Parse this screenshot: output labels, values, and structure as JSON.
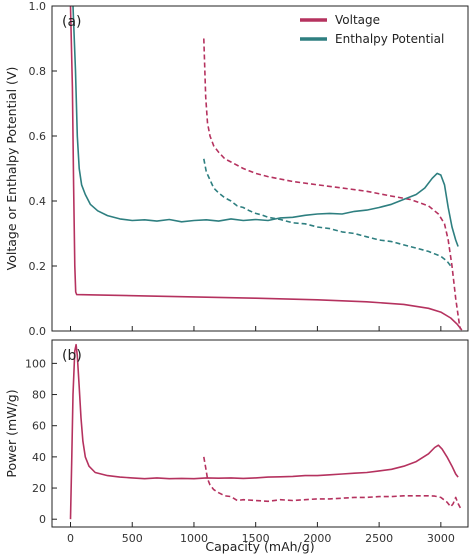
{
  "chart_data": [
    {
      "panel": "(a)",
      "type": "line",
      "xlabel": "",
      "ylabel": "Voltage or Enthalpy Potential (V)",
      "xlim": [
        -150,
        3220
      ],
      "ylim": [
        0.0,
        1.0
      ],
      "xticks": [
        0,
        500,
        1000,
        1500,
        2000,
        2500,
        3000
      ],
      "yticks": [
        0.0,
        0.2,
        0.4,
        0.6,
        0.8,
        1.0
      ],
      "ytick_labels": [
        "0.0",
        "0.2",
        "0.4",
        "0.6",
        "0.8",
        "1.0"
      ],
      "legend_position": "top-right",
      "legend": [
        "Voltage",
        "Enthalpy Potential"
      ],
      "series": [
        {
          "name": "Voltage",
          "color": "#b5325f",
          "style": "solid",
          "points": [
            [
              0,
              1.0
            ],
            [
              15,
              0.75
            ],
            [
              25,
              0.45
            ],
            [
              35,
              0.2
            ],
            [
              42,
              0.12
            ],
            [
              50,
              0.112
            ],
            [
              200,
              0.111
            ],
            [
              600,
              0.108
            ],
            [
              1000,
              0.105
            ],
            [
              1500,
              0.101
            ],
            [
              2000,
              0.096
            ],
            [
              2400,
              0.09
            ],
            [
              2700,
              0.082
            ],
            [
              2900,
              0.07
            ],
            [
              3000,
              0.058
            ],
            [
              3080,
              0.04
            ],
            [
              3130,
              0.022
            ],
            [
              3170,
              0.003
            ]
          ]
        },
        {
          "name": "Voltage",
          "color": "#b5325f",
          "style": "dashed",
          "points": [
            [
              1080,
              0.9
            ],
            [
              1095,
              0.72
            ],
            [
              1110,
              0.64
            ],
            [
              1130,
              0.6
            ],
            [
              1160,
              0.57
            ],
            [
              1200,
              0.55
            ],
            [
              1250,
              0.53
            ],
            [
              1300,
              0.52
            ],
            [
              1400,
              0.5
            ],
            [
              1500,
              0.485
            ],
            [
              1600,
              0.475
            ],
            [
              1800,
              0.46
            ],
            [
              2000,
              0.45
            ],
            [
              2200,
              0.44
            ],
            [
              2400,
              0.43
            ],
            [
              2600,
              0.415
            ],
            [
              2750,
              0.405
            ],
            [
              2900,
              0.385
            ],
            [
              2980,
              0.36
            ],
            [
              3030,
              0.33
            ],
            [
              3060,
              0.28
            ],
            [
              3090,
              0.2
            ],
            [
              3120,
              0.1
            ],
            [
              3150,
              0.02
            ],
            [
              3160,
              0.005
            ]
          ]
        },
        {
          "name": "Enthalpy Potential",
          "color": "#2e7f80",
          "style": "solid",
          "points": [
            [
              20,
              1.0
            ],
            [
              40,
              0.8
            ],
            [
              55,
              0.6
            ],
            [
              70,
              0.5
            ],
            [
              90,
              0.45
            ],
            [
              120,
              0.42
            ],
            [
              160,
              0.39
            ],
            [
              220,
              0.37
            ],
            [
              300,
              0.355
            ],
            [
              400,
              0.345
            ],
            [
              500,
              0.34
            ],
            [
              600,
              0.342
            ],
            [
              700,
              0.338
            ],
            [
              800,
              0.343
            ],
            [
              900,
              0.336
            ],
            [
              1000,
              0.34
            ],
            [
              1100,
              0.342
            ],
            [
              1200,
              0.338
            ],
            [
              1300,
              0.345
            ],
            [
              1400,
              0.34
            ],
            [
              1500,
              0.343
            ],
            [
              1600,
              0.34
            ],
            [
              1700,
              0.348
            ],
            [
              1800,
              0.35
            ],
            [
              1900,
              0.356
            ],
            [
              2000,
              0.36
            ],
            [
              2100,
              0.362
            ],
            [
              2200,
              0.36
            ],
            [
              2300,
              0.368
            ],
            [
              2400,
              0.372
            ],
            [
              2500,
              0.38
            ],
            [
              2600,
              0.39
            ],
            [
              2700,
              0.405
            ],
            [
              2800,
              0.42
            ],
            [
              2870,
              0.44
            ],
            [
              2930,
              0.47
            ],
            [
              2970,
              0.485
            ],
            [
              3000,
              0.48
            ],
            [
              3030,
              0.45
            ],
            [
              3060,
              0.38
            ],
            [
              3090,
              0.32
            ],
            [
              3120,
              0.28
            ],
            [
              3140,
              0.26
            ]
          ]
        },
        {
          "name": "Enthalpy Potential",
          "color": "#2e7f80",
          "style": "dashed",
          "points": [
            [
              1080,
              0.53
            ],
            [
              1100,
              0.49
            ],
            [
              1130,
              0.465
            ],
            [
              1160,
              0.44
            ],
            [
              1200,
              0.425
            ],
            [
              1250,
              0.41
            ],
            [
              1300,
              0.4
            ],
            [
              1350,
              0.385
            ],
            [
              1400,
              0.38
            ],
            [
              1450,
              0.37
            ],
            [
              1500,
              0.362
            ],
            [
              1550,
              0.357
            ],
            [
              1600,
              0.35
            ],
            [
              1700,
              0.343
            ],
            [
              1800,
              0.333
            ],
            [
              1900,
              0.33
            ],
            [
              2000,
              0.32
            ],
            [
              2100,
              0.315
            ],
            [
              2200,
              0.305
            ],
            [
              2300,
              0.3
            ],
            [
              2400,
              0.29
            ],
            [
              2500,
              0.28
            ],
            [
              2600,
              0.275
            ],
            [
              2700,
              0.265
            ],
            [
              2800,
              0.255
            ],
            [
              2900,
              0.245
            ],
            [
              3000,
              0.23
            ],
            [
              3050,
              0.215
            ],
            [
              3080,
              0.2
            ]
          ]
        }
      ]
    },
    {
      "panel": "(b)",
      "type": "line",
      "xlabel": "Capacity (mAh/g)",
      "ylabel": "Power (mW/g)",
      "xlim": [
        -150,
        3220
      ],
      "ylim": [
        -5,
        115
      ],
      "xticks": [
        0,
        500,
        1000,
        1500,
        2000,
        2500,
        3000
      ],
      "xtick_labels": [
        "0",
        "500",
        "1000",
        "1500",
        "2000",
        "2500",
        "3000"
      ],
      "yticks": [
        0,
        20,
        40,
        60,
        80,
        100
      ],
      "ytick_labels": [
        "0",
        "20",
        "40",
        "60",
        "80",
        "100"
      ],
      "series": [
        {
          "color": "#b5325f",
          "style": "solid",
          "points": [
            [
              0,
              0
            ],
            [
              10,
              40
            ],
            [
              20,
              80
            ],
            [
              35,
              108
            ],
            [
              45,
              112
            ],
            [
              55,
              105
            ],
            [
              70,
              85
            ],
            [
              85,
              65
            ],
            [
              100,
              50
            ],
            [
              120,
              40
            ],
            [
              150,
              34
            ],
            [
              200,
              30
            ],
            [
              300,
              28
            ],
            [
              400,
              27
            ],
            [
              500,
              26.5
            ],
            [
              600,
              26
            ],
            [
              700,
              26.5
            ],
            [
              800,
              26
            ],
            [
              900,
              26.2
            ],
            [
              1000,
              26
            ],
            [
              1100,
              26.5
            ],
            [
              1200,
              26.3
            ],
            [
              1300,
              26.5
            ],
            [
              1400,
              26.2
            ],
            [
              1500,
              26.5
            ],
            [
              1600,
              27
            ],
            [
              1700,
              27.2
            ],
            [
              1800,
              27.5
            ],
            [
              1900,
              28
            ],
            [
              2000,
              28
            ],
            [
              2100,
              28.5
            ],
            [
              2200,
              29
            ],
            [
              2300,
              29.5
            ],
            [
              2400,
              30
            ],
            [
              2500,
              31
            ],
            [
              2600,
              32
            ],
            [
              2700,
              34
            ],
            [
              2800,
              37
            ],
            [
              2900,
              42
            ],
            [
              2950,
              46
            ],
            [
              2980,
              47.5
            ],
            [
              3010,
              45
            ],
            [
              3050,
              40
            ],
            [
              3090,
              34
            ],
            [
              3120,
              29
            ],
            [
              3140,
              27
            ]
          ]
        },
        {
          "color": "#b5325f",
          "style": "dashed",
          "points": [
            [
              1080,
              40
            ],
            [
              1095,
              33
            ],
            [
              1110,
              26
            ],
            [
              1130,
              22
            ],
            [
              1160,
              19
            ],
            [
              1200,
              17
            ],
            [
              1250,
              15
            ],
            [
              1300,
              14.5
            ],
            [
              1350,
              12
            ],
            [
              1400,
              12.5
            ],
            [
              1500,
              12
            ],
            [
              1600,
              11.5
            ],
            [
              1700,
              12.5
            ],
            [
              1800,
              12
            ],
            [
              1900,
              12.5
            ],
            [
              2000,
              13
            ],
            [
              2100,
              13
            ],
            [
              2200,
              13.5
            ],
            [
              2300,
              14
            ],
            [
              2400,
              14
            ],
            [
              2500,
              14.5
            ],
            [
              2600,
              14.5
            ],
            [
              2700,
              15
            ],
            [
              2800,
              15
            ],
            [
              2900,
              15
            ],
            [
              2950,
              14.8
            ],
            [
              3000,
              14
            ],
            [
              3050,
              11
            ],
            [
              3080,
              8
            ],
            [
              3100,
              10
            ],
            [
              3120,
              14
            ],
            [
              3140,
              10
            ],
            [
              3160,
              7
            ]
          ]
        }
      ]
    }
  ]
}
